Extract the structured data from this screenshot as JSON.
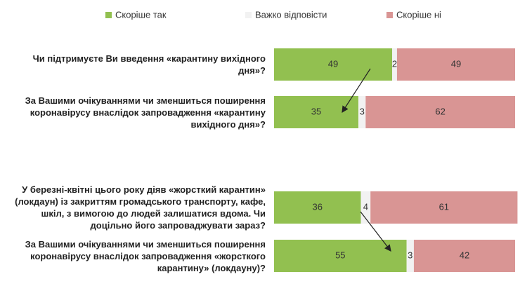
{
  "chart_data": {
    "type": "stacked-bar-horizontal",
    "categories": [
      "Чи підтримуєте Ви введення «карантину вихідного дня»?",
      "За Вашими очікуваннями чи зменшиться поширення коронавірусу внаслідок запровадження «карантину вихідного дня»?",
      "У березні-квітні цього року діяв «жорсткий карантин» (локдаун) із закриттям громадського транспорту, кафе, шкіл, з вимогою до людей залишатися вдома. Чи доцільно його запроваджувати зараз?",
      "За Вашими очікуваннями чи зменшиться поширення коронавірусу внаслідок запровадження «жорсткого карантину» (локдауну)?"
    ],
    "series": [
      {
        "name": "Скоріше так",
        "color": "#92c050",
        "values": [
          49,
          35,
          36,
          55
        ]
      },
      {
        "name": "Важко відповісти",
        "color": "#f2f2f2",
        "values": [
          2,
          3,
          4,
          3
        ]
      },
      {
        "name": "Скоріше ні",
        "color": "#d99594",
        "values": [
          49,
          62,
          61,
          42
        ]
      }
    ],
    "legend": "top"
  }
}
